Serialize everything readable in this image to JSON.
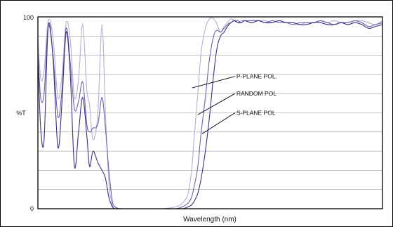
{
  "chart_data": {
    "type": "line",
    "xlabel": "Wavelength (nm)",
    "ylabel": "%T",
    "xlim": [
      0,
      100
    ],
    "ylim": [
      0,
      100
    ],
    "yticks": [
      0,
      100
    ],
    "grid": true,
    "colors": {
      "p": "#b3aed3",
      "random": "#6e62ad",
      "s": "#3a3186",
      "frame": "#000000",
      "grid": "#9a9a9a"
    },
    "series": [
      {
        "name": "P-PLANE POL.",
        "color": "#b3aed3",
        "x": [
          0,
          0.8,
          1.8,
          3,
          4.4,
          5.8,
          7,
          8.2,
          9.4,
          10.6,
          11.8,
          13,
          14.2,
          15,
          16,
          17.4,
          18.6,
          19.6,
          20.6,
          21.6,
          22.4,
          23.6,
          25,
          28,
          32,
          36,
          40,
          42,
          43.6,
          44.6,
          45.4,
          46.4,
          47.4,
          48.6,
          49.8,
          51,
          52,
          53,
          54,
          55,
          56,
          57,
          58,
          59,
          60,
          62,
          64,
          66,
          68,
          70,
          72,
          74,
          76,
          78,
          80,
          82,
          84,
          86,
          88,
          90,
          92,
          94,
          96,
          98,
          100
        ],
        "y": [
          90,
          68,
          72,
          98,
          89,
          58,
          70,
          97,
          88,
          58,
          68,
          96,
          62,
          54,
          36,
          50,
          96,
          50,
          14,
          2,
          1,
          0,
          0,
          0,
          0,
          0,
          1,
          3,
          8,
          20,
          38,
          60,
          82,
          94,
          99,
          99,
          96,
          92,
          95,
          97,
          99,
          98,
          97,
          98,
          98,
          97,
          98,
          98,
          97,
          98,
          97,
          97,
          96,
          97,
          97,
          98,
          97,
          98,
          97,
          97,
          98,
          98,
          97,
          96,
          98
        ]
      },
      {
        "name": "RANDOM POL",
        "color": "#6e62ad",
        "x": [
          0,
          0.8,
          1.8,
          3,
          4.4,
          5.8,
          7,
          8.2,
          9.4,
          10.6,
          11.8,
          13,
          14.2,
          15,
          16,
          17.4,
          18.6,
          19.6,
          20.6,
          21.6,
          22.4,
          23.6,
          25,
          28,
          32,
          36,
          40,
          42,
          43.6,
          44.6,
          45.4,
          46.4,
          47.4,
          48.6,
          49.8,
          51,
          52,
          53,
          54,
          55,
          56,
          57,
          58,
          59,
          60,
          62,
          64,
          66,
          68,
          70,
          72,
          74,
          76,
          78,
          80,
          82,
          84,
          86,
          88,
          90,
          92,
          94,
          96,
          98,
          100
        ],
        "y": [
          82,
          58,
          60,
          95,
          80,
          48,
          62,
          94,
          76,
          52,
          56,
          66,
          44,
          40,
          42,
          44,
          58,
          42,
          20,
          4,
          1,
          0,
          0,
          0,
          0,
          0,
          0,
          1,
          3,
          6,
          12,
          22,
          40,
          58,
          78,
          90,
          93,
          92,
          94,
          96,
          97,
          98,
          98,
          97,
          98,
          98,
          98,
          97,
          98,
          97,
          97,
          96,
          97,
          97,
          97,
          98,
          97,
          96,
          97,
          97,
          98,
          97,
          95,
          96,
          97
        ]
      },
      {
        "name": "S-PLANE POL",
        "color": "#3a3186",
        "x": [
          0,
          0.8,
          1.8,
          3,
          4.4,
          5.8,
          7,
          8.2,
          9.4,
          10.6,
          11.8,
          13,
          14.2,
          15,
          16,
          17.4,
          18.6,
          19.6,
          20.6,
          21.6,
          22.4,
          23.6,
          25,
          28,
          32,
          36,
          40,
          42,
          43.6,
          44.6,
          45.4,
          46.4,
          47.4,
          48.6,
          49.8,
          51,
          52,
          53,
          54,
          55,
          56,
          57,
          58,
          59,
          60,
          62,
          64,
          66,
          68,
          70,
          72,
          74,
          76,
          78,
          80,
          82,
          84,
          86,
          88,
          90,
          92,
          94,
          96,
          98,
          100
        ],
        "y": [
          80,
          42,
          36,
          95,
          78,
          32,
          56,
          92,
          70,
          22,
          40,
          58,
          38,
          22,
          30,
          24,
          20,
          16,
          6,
          1,
          0,
          0,
          0,
          0,
          0,
          0,
          0,
          0,
          1,
          2,
          4,
          8,
          16,
          30,
          48,
          70,
          84,
          90,
          92,
          95,
          97,
          98,
          97,
          97,
          98,
          97,
          98,
          97,
          97,
          98,
          97,
          97,
          96,
          96,
          97,
          97,
          96,
          96,
          97,
          96,
          97,
          96,
          94,
          95,
          96
        ]
      }
    ],
    "annotations": [
      {
        "text": "P-PLANE POL.",
        "series": 0,
        "x": 44.8,
        "y": 63,
        "label_x": 57.6,
        "label_y": 69
      },
      {
        "text": "RANDOM POL",
        "series": 1,
        "x": 46.4,
        "y": 49,
        "label_x": 57.6,
        "label_y": 60
      },
      {
        "text": "S-PLANE POL",
        "series": 2,
        "x": 47.6,
        "y": 39,
        "label_x": 57.6,
        "label_y": 50
      }
    ]
  }
}
